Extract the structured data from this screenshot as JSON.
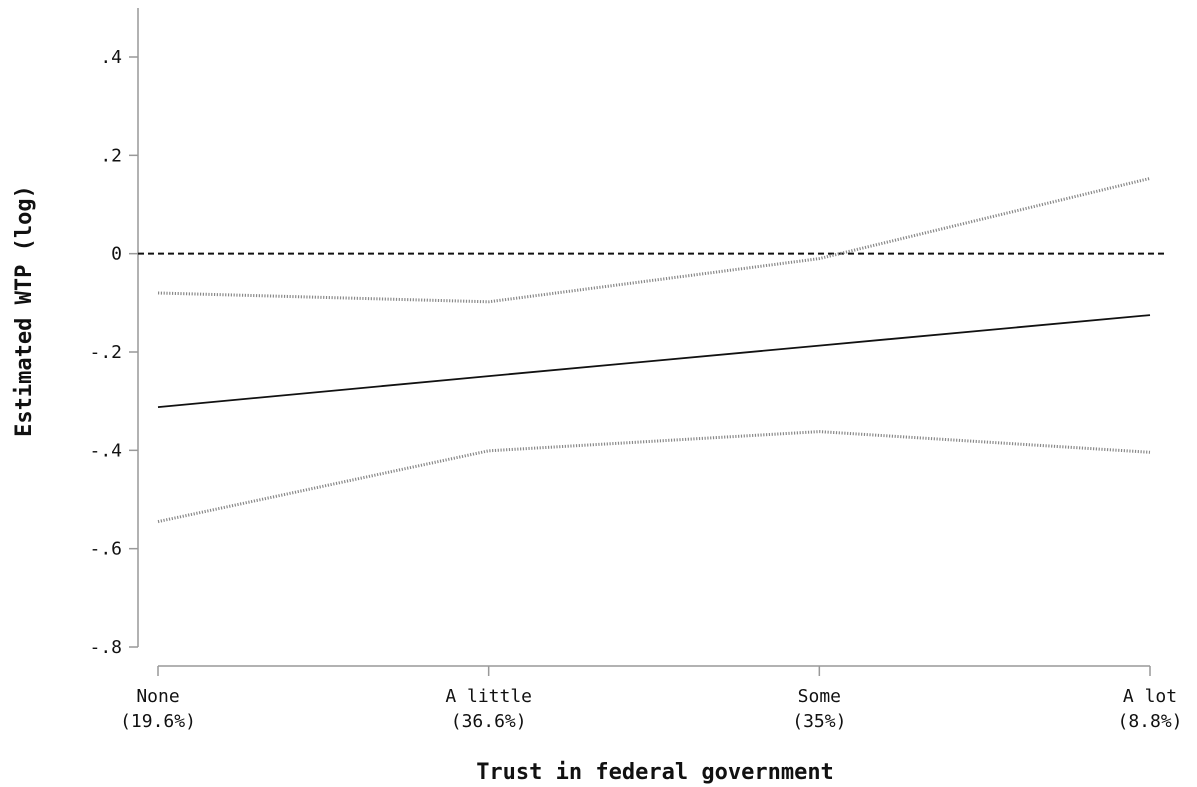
{
  "chart_data": {
    "type": "line",
    "title": "",
    "xlabel": "Trust in federal government",
    "ylabel": "Estimated WTP (log)",
    "categories": [
      {
        "name": "None",
        "pct": "(19.6%)"
      },
      {
        "name": "A little",
        "pct": "(36.6%)"
      },
      {
        "name": "Some",
        "pct": "(35%)"
      },
      {
        "name": "A lot",
        "pct": "(8.8%)"
      }
    ],
    "ylim": [
      -0.8,
      0.5
    ],
    "yticks": [
      {
        "value": 0.4,
        "label": ".4"
      },
      {
        "value": 0.2,
        "label": ".2"
      },
      {
        "value": 0,
        "label": "0"
      },
      {
        "value": -0.2,
        "label": "-.2"
      },
      {
        "value": -0.4,
        "label": "-.4"
      },
      {
        "value": -0.6,
        "label": "-.6"
      },
      {
        "value": -0.8,
        "label": "-.8"
      }
    ],
    "series": [
      {
        "role": "estimate",
        "style": "solid",
        "values": [
          -0.312,
          -0.249,
          -0.187,
          -0.125
        ]
      },
      {
        "role": "upper",
        "style": "dotted",
        "values": [
          -0.08,
          -0.098,
          -0.01,
          0.153
        ]
      },
      {
        "role": "lower",
        "style": "dotted",
        "values": [
          -0.545,
          -0.401,
          -0.362,
          -0.404
        ]
      }
    ],
    "reference_line": {
      "value": 0,
      "style": "dashed"
    },
    "grid": false,
    "legend": "none",
    "colors": {
      "line": "#111111",
      "ci": "#888888",
      "axis": "#999999"
    }
  }
}
